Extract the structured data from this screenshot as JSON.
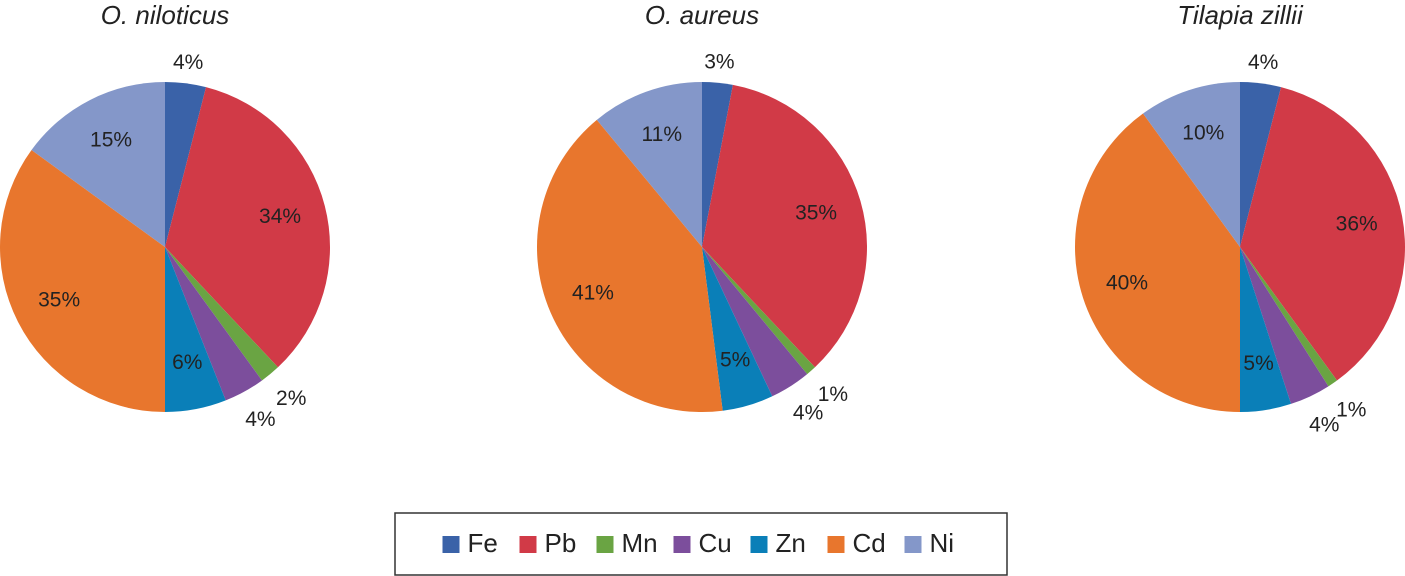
{
  "chart_data": [
    {
      "type": "pie",
      "title": "O. niloticus",
      "categories": [
        "Fe",
        "Pb",
        "Mn",
        "Cu",
        "Zn",
        "Cd",
        "Ni"
      ],
      "values": [
        4,
        34,
        2,
        4,
        6,
        35,
        15
      ],
      "value_labels": [
        "4%",
        "34%",
        "2%",
        "4%",
        "6%",
        "35%",
        "15%"
      ],
      "colors": [
        "#3a62a8",
        "#d13a47",
        "#6aa443",
        "#7c4e9c",
        "#0a7fb8",
        "#e8762d",
        "#8497c9"
      ]
    },
    {
      "type": "pie",
      "title": "O. aureus",
      "categories": [
        "Fe",
        "Pb",
        "Mn",
        "Cu",
        "Zn",
        "Cd",
        "Ni"
      ],
      "values": [
        3,
        35,
        1,
        4,
        5,
        41,
        11
      ],
      "value_labels": [
        "3%",
        "35%",
        "1%",
        "4%",
        "5%",
        "41%",
        "11%"
      ],
      "colors": [
        "#3a62a8",
        "#d13a47",
        "#6aa443",
        "#7c4e9c",
        "#0a7fb8",
        "#e8762d",
        "#8497c9"
      ]
    },
    {
      "type": "pie",
      "title": "Tilapia zillii",
      "categories": [
        "Fe",
        "Pb",
        "Mn",
        "Cu",
        "Zn",
        "Cd",
        "Ni"
      ],
      "values": [
        4,
        36,
        1,
        4,
        5,
        40,
        10
      ],
      "value_labels": [
        "4%",
        "36%",
        "1%",
        "4%",
        "5%",
        "40%",
        "10%"
      ],
      "colors": [
        "#3a62a8",
        "#d13a47",
        "#6aa443",
        "#7c4e9c",
        "#0a7fb8",
        "#e8762d",
        "#8497c9"
      ]
    }
  ]
}
